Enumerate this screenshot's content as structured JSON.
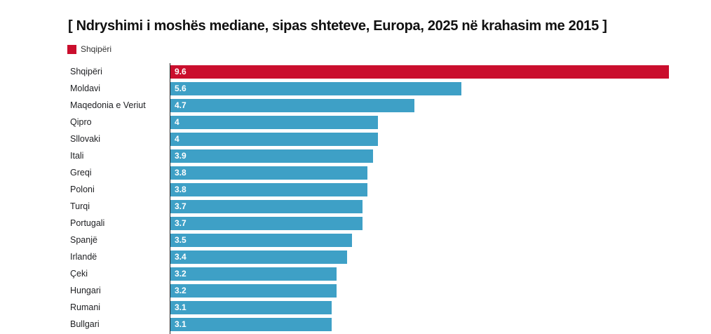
{
  "title": "[ Ndryshimi i moshës mediane, sipas shteteve, Europa, 2025 në krahasim me 2015 ]",
  "legend": {
    "label": "Shqipëri",
    "swatch_color": "#CA0E2D"
  },
  "colors": {
    "highlight": "#CA0E2D",
    "default": "#3EA0C6",
    "axis": "#222222",
    "title_text": "#111111",
    "label_text": "#202124",
    "value_text": "#ffffff"
  },
  "chart_data": {
    "type": "bar",
    "orientation": "horizontal",
    "title": "[ Ndryshimi i moshës mediane, sipas shteteve, Europa, 2025 në krahasim me 2015 ]",
    "legend_position": "top-left",
    "legend_entries": [
      "Shqipëri"
    ],
    "categories": [
      "Shqipëri",
      "Moldavi",
      "Maqedonia e Veriut",
      "Qipro",
      "Sllovaki",
      "Itali",
      "Greqi",
      "Poloni",
      "Turqi",
      "Portugali",
      "Spanjë",
      "Irlandë",
      "Çeki",
      "Hungari",
      "Rumani",
      "Bullgari"
    ],
    "values": [
      9.6,
      5.6,
      4.7,
      4,
      4,
      3.9,
      3.8,
      3.8,
      3.7,
      3.7,
      3.5,
      3.4,
      3.2,
      3.2,
      3.1,
      3.1
    ],
    "value_labels": [
      "9.6",
      "5.6",
      "4.7",
      "4",
      "4",
      "3.9",
      "3.8",
      "3.8",
      "3.7",
      "3.7",
      "3.5",
      "3.4",
      "3.2",
      "3.2",
      "3.1",
      "3.1"
    ],
    "highlighted_category": "Shqipëri",
    "xlim": [
      0,
      9.6
    ],
    "grid": false,
    "xlabel": "",
    "ylabel": ""
  }
}
